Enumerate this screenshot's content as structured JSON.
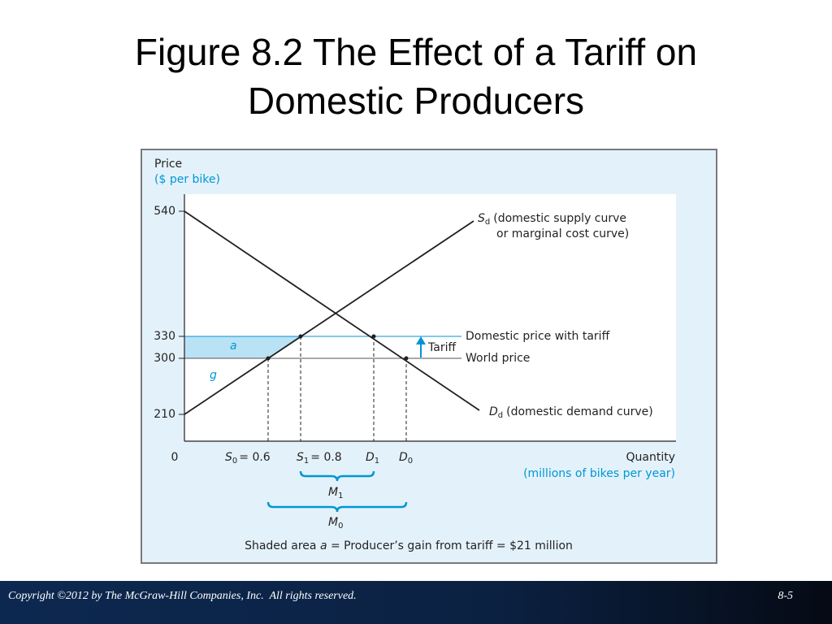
{
  "title": "Figure 8.2 The Effect of a Tariff on Domestic Producers",
  "figure": {
    "y_axis": {
      "title": "Price",
      "unit": "($ per bike)",
      "ticks": [
        "540",
        "330",
        "300",
        "210"
      ]
    },
    "x_axis": {
      "origin": "0",
      "title": "Quantity",
      "unit": "(millions of bikes per year)",
      "ticks": [
        {
          "symbol": "S",
          "sub": "0",
          "value": "= 0.6"
        },
        {
          "symbol": "S",
          "sub": "1",
          "value": "= 0.8"
        },
        {
          "symbol": "D",
          "sub": "1"
        },
        {
          "symbol": "D",
          "sub": "0"
        }
      ]
    },
    "supply": {
      "symbol": "S",
      "sub": "d",
      "label_1": "(domestic supply curve",
      "label_2": "or marginal cost curve)"
    },
    "demand": {
      "symbol": "D",
      "sub": "d",
      "label": "(domestic demand curve)"
    },
    "lines": {
      "tariff_price": "Domestic price with tariff",
      "world_price": "World price",
      "tariff": "Tariff"
    },
    "areas": {
      "a": "a",
      "g": "g"
    },
    "imports": [
      {
        "symbol": "M",
        "sub": "1"
      },
      {
        "symbol": "M",
        "sub": "0"
      }
    ],
    "caption": {
      "pre": "Shaded area ",
      "a": "a",
      "post": " = Producer’s gain from tariff = $21 million"
    }
  },
  "footer": {
    "copyright": "Copyright ©2012 by The McGraw-Hill Companies, Inc.  All rights reserved.",
    "page": "8-5"
  }
}
